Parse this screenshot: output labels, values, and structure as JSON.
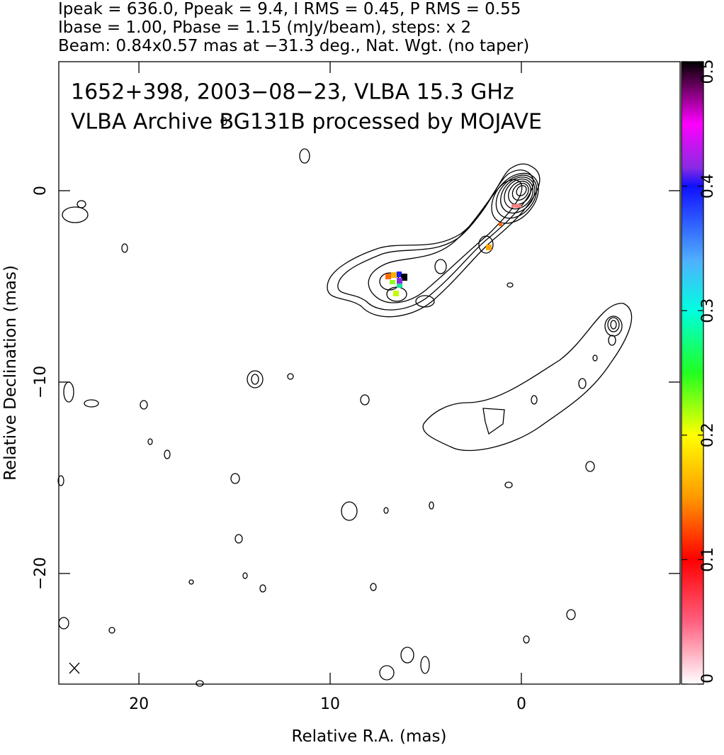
{
  "header": {
    "lines": [
      "Ipeak = 636.0, Ppeak = 9.4, I RMS = 0.45, P RMS = 0.55",
      "Ibase = 1.00, Pbase = 1.15 (mJy/beam), steps: x 2",
      "Beam: 0.84x0.57 mas at −31.3 deg., Nat. Wgt. (no taper)"
    ]
  },
  "chart_data": {
    "type": "image",
    "title": "1652+398, 2003−08−23, VLBA 15.3 GHz",
    "subtitle": "VLBA Archive BG131B processed by MOJAVE",
    "xlabel": "Relative R.A. (mas)",
    "ylabel": "Relative Declination (mas)",
    "xlim": [
      24.19,
      -8.3
    ],
    "ylim": [
      -25.78,
      6.74
    ],
    "xticks": [
      20,
      10,
      0
    ],
    "yticks": [
      0,
      {
        "value": -10,
        "label": "−10"
      },
      {
        "value": -20,
        "label": "−20"
      }
    ],
    "colorbar": {
      "lim": [
        0,
        0.5
      ],
      "ticks": [
        0,
        0.1,
        0.2,
        0.3,
        0.4,
        0.5
      ]
    }
  }
}
